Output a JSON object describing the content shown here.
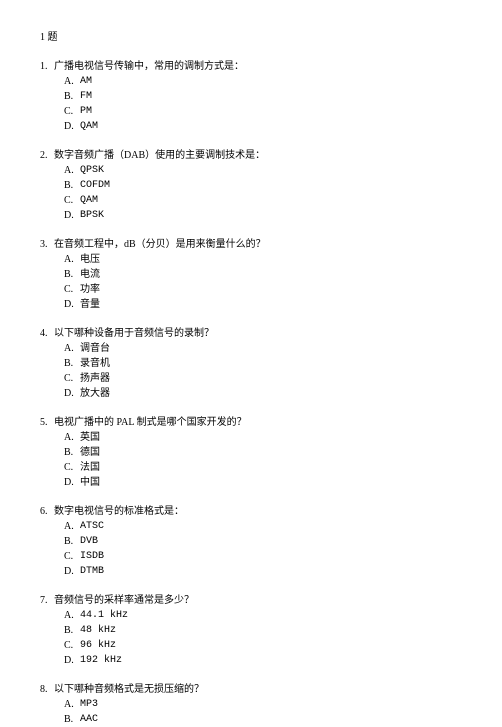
{
  "header": "1 题",
  "questions": [
    {
      "num": "1.",
      "text": "广播电视信号传输中，常用的调制方式是：",
      "options": [
        {
          "letter": "A.",
          "text": "AM",
          "mono": true
        },
        {
          "letter": "B.",
          "text": "FM",
          "mono": true
        },
        {
          "letter": "C.",
          "text": "PM",
          "mono": true
        },
        {
          "letter": "D.",
          "text": "QAM",
          "mono": true
        }
      ]
    },
    {
      "num": "2.",
      "text": "数字音频广播（DAB）使用的主要调制技术是：",
      "options": [
        {
          "letter": "A.",
          "text": "QPSK",
          "mono": true
        },
        {
          "letter": "B.",
          "text": "COFDM",
          "mono": true
        },
        {
          "letter": "C.",
          "text": "QAM",
          "mono": true
        },
        {
          "letter": "D.",
          "text": "BPSK",
          "mono": true
        }
      ]
    },
    {
      "num": "3.",
      "text": "在音频工程中，dB（分贝）是用来衡量什么的？",
      "options": [
        {
          "letter": "A.",
          "text": "电压",
          "mono": false
        },
        {
          "letter": "B.",
          "text": "电流",
          "mono": false
        },
        {
          "letter": "C.",
          "text": "功率",
          "mono": false
        },
        {
          "letter": "D.",
          "text": "音量",
          "mono": false
        }
      ]
    },
    {
      "num": "4.",
      "text": "以下哪种设备用于音频信号的录制？",
      "options": [
        {
          "letter": "A.",
          "text": "调音台",
          "mono": false
        },
        {
          "letter": "B.",
          "text": "录音机",
          "mono": false
        },
        {
          "letter": "C.",
          "text": "扬声器",
          "mono": false
        },
        {
          "letter": "D.",
          "text": "放大器",
          "mono": false
        }
      ]
    },
    {
      "num": "5.",
      "text": "电视广播中的 PAL 制式是哪个国家开发的？",
      "options": [
        {
          "letter": "A.",
          "text": "英国",
          "mono": false
        },
        {
          "letter": "B.",
          "text": "德国",
          "mono": false
        },
        {
          "letter": "C.",
          "text": "法国",
          "mono": false
        },
        {
          "letter": "D.",
          "text": "中国",
          "mono": false
        }
      ]
    },
    {
      "num": "6.",
      "text": "数字电视信号的标准格式是：",
      "options": [
        {
          "letter": "A.",
          "text": "ATSC",
          "mono": true
        },
        {
          "letter": "B.",
          "text": "DVB",
          "mono": true
        },
        {
          "letter": "C.",
          "text": "ISDB",
          "mono": true
        },
        {
          "letter": "D.",
          "text": "DTMB",
          "mono": true
        }
      ]
    },
    {
      "num": "7.",
      "text": "音频信号的采样率通常是多少？",
      "options": [
        {
          "letter": "A.",
          "text": "44.1 kHz",
          "mono": true
        },
        {
          "letter": "B.",
          "text": "48 kHz",
          "mono": true
        },
        {
          "letter": "C.",
          "text": "96 kHz",
          "mono": true
        },
        {
          "letter": "D.",
          "text": "192 kHz",
          "mono": true
        }
      ]
    },
    {
      "num": "8.",
      "text": "以下哪种音频格式是无损压缩的？",
      "options": [
        {
          "letter": "A.",
          "text": "MP3",
          "mono": true
        },
        {
          "letter": "B.",
          "text": "AAC",
          "mono": true
        }
      ]
    }
  ]
}
